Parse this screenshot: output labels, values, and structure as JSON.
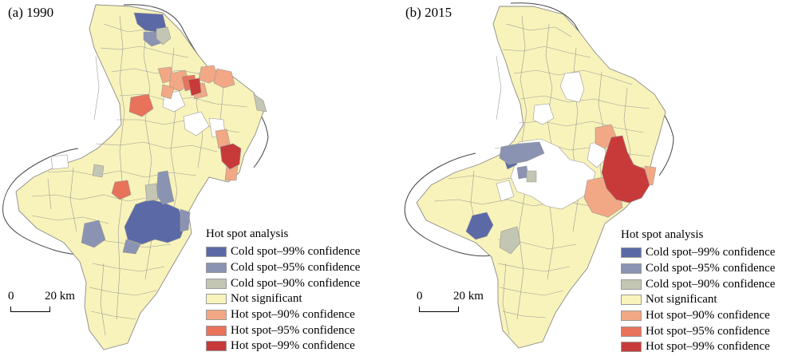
{
  "panels": [
    {
      "id": "a",
      "title": "(a) 1990"
    },
    {
      "id": "b",
      "title": "(b) 2015"
    }
  ],
  "scale_bar": {
    "start_label": "0",
    "end_label": "20 km"
  },
  "legend": {
    "title": "Hot spot analysis",
    "items": [
      {
        "label": "Cold spot–99% confidence",
        "color": "#5b6aa6"
      },
      {
        "label": "Cold spot–95% confidence",
        "color": "#8b93b2"
      },
      {
        "label": "Cold spot–90% confidence",
        "color": "#c2c6b2"
      },
      {
        "label": "Not significant",
        "color": "#f8f3ba"
      },
      {
        "label": "Hot spot–90% confidence",
        "color": "#f2a884"
      },
      {
        "label": "Hot spot–95% confidence",
        "color": "#e8725a"
      },
      {
        "label": "Hot spot–99% confidence",
        "color": "#c83a3a"
      }
    ]
  }
}
